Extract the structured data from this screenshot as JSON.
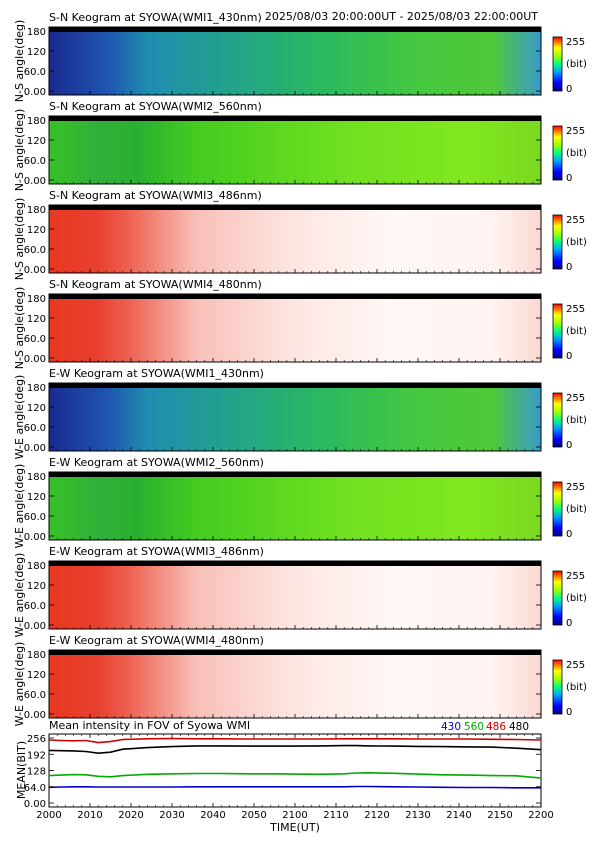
{
  "header": {
    "time_range": "2025/08/03 20:00:00UT - 2025/08/03 22:00:00UT"
  },
  "colorbar": {
    "max_label": "255",
    "unit_label": "(bit)",
    "min_label": "0"
  },
  "panels": [
    {
      "title": "S-N Keogram at SYOWA(WMI1_430nm)",
      "ylabel": "N-S angle(deg)",
      "scheme": "jet",
      "yticks": [
        "180",
        "120",
        "60.0",
        "0.00"
      ]
    },
    {
      "title": "S-N Keogram at SYOWA(WMI2_560nm)",
      "ylabel": "N-S angle(deg)",
      "scheme": "green",
      "yticks": [
        "180",
        "120",
        "60.0",
        "0.00"
      ]
    },
    {
      "title": "S-N Keogram at SYOWA(WMI3_486nm)",
      "ylabel": "N-S angle(deg)",
      "scheme": "red",
      "yticks": [
        "180",
        "120",
        "60.0",
        "0.00"
      ]
    },
    {
      "title": "S-N Keogram at SYOWA(WMI4_480nm)",
      "ylabel": "N-S angle(deg)",
      "scheme": "red",
      "yticks": [
        "180",
        "120",
        "60.0",
        "0.00"
      ]
    },
    {
      "title": "E-W Keogram at SYOWA(WMI1_430nm)",
      "ylabel": "W-E angle(deg)",
      "scheme": "jet",
      "yticks": [
        "180",
        "120",
        "60.0",
        "0.00"
      ]
    },
    {
      "title": "E-W Keogram at SYOWA(WMI2_560nm)",
      "ylabel": "W-E angle(deg)",
      "scheme": "green",
      "yticks": [
        "180",
        "120",
        "60.0",
        "0.00"
      ]
    },
    {
      "title": "E-W Keogram at SYOWA(WMI3_486nm)",
      "ylabel": "W-E angle(deg)",
      "scheme": "red",
      "yticks": [
        "180",
        "120",
        "60.0",
        "0.00"
      ]
    },
    {
      "title": "E-W Keogram at SYOWA(WMI4_480nm)",
      "ylabel": "W-E angle(deg)",
      "scheme": "red",
      "yticks": [
        "180",
        "120",
        "60.0",
        "0.00"
      ]
    }
  ],
  "chart_data": {
    "type": "line",
    "title": "Mean intensity in FOV of Syowa WMI",
    "xlabel": "TIME(UT)",
    "ylabel": "MEAN(BIT)",
    "xlim": [
      2000,
      2200
    ],
    "ylim": [
      0,
      256
    ],
    "xticks": [
      "2000",
      "2010",
      "2020",
      "2030",
      "2040",
      "2050",
      "2100",
      "2110",
      "2120",
      "2130",
      "2140",
      "2150",
      "2200"
    ],
    "yticks": [
      "256",
      "192",
      "128",
      "64.0",
      "0.00"
    ],
    "x": [
      0,
      5,
      10,
      15,
      20,
      25,
      30,
      40,
      50,
      60,
      70,
      80,
      90,
      100,
      110,
      120,
      125,
      130,
      140,
      150,
      160,
      170,
      180,
      190,
      200
    ],
    "series": [
      {
        "name": "430",
        "color": "#0000cc",
        "values": [
          62,
          63,
          64,
          64,
          63,
          63,
          63,
          63,
          63,
          64,
          64,
          64,
          64,
          64,
          64,
          64,
          65,
          65,
          64,
          63,
          62,
          61,
          61,
          60,
          60
        ]
      },
      {
        "name": "560",
        "color": "#00aa00",
        "values": [
          108,
          110,
          112,
          111,
          105,
          103,
          108,
          113,
          115,
          116,
          116,
          115,
          115,
          114,
          113,
          115,
          118,
          119,
          117,
          114,
          111,
          110,
          108,
          107,
          98
        ]
      },
      {
        "name": "486",
        "color": "#cc0000",
        "values": [
          248,
          246,
          245,
          246,
          238,
          242,
          250,
          253,
          254,
          253,
          253,
          252,
          252,
          252,
          252,
          253,
          253,
          253,
          253,
          252,
          252,
          252,
          251,
          250,
          248
        ]
      },
      {
        "name": "480",
        "color": "#000000",
        "values": [
          207,
          206,
          205,
          203,
          196,
          200,
          212,
          218,
          222,
          225,
          225,
          224,
          224,
          224,
          225,
          226,
          226,
          225,
          224,
          223,
          222,
          221,
          220,
          216,
          210
        ]
      }
    ]
  }
}
